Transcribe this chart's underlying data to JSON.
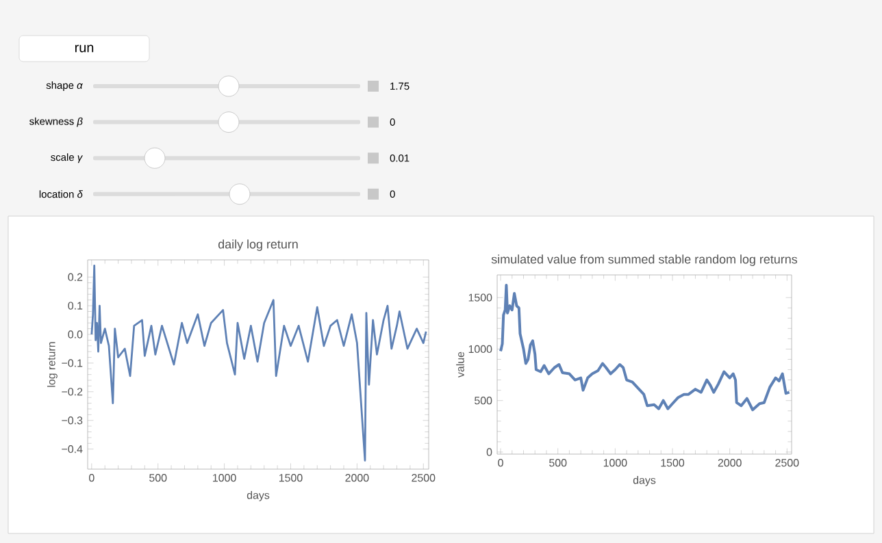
{
  "chart_data": [
    {
      "type": "other",
      "annotations": [
        "run",
        "shape *α*",
        "1.75",
        "skewness *β*",
        "0",
        "scale *γ*",
        "0.01",
        "location *δ*",
        "0"
      ]
    },
    {
      "type": "line",
      "title": "daily log return",
      "xlabel": "days",
      "ylabel": "log return",
      "xlim": [
        -30,
        2540
      ],
      "ylim": [
        -0.47,
        0.26
      ],
      "xticks": [
        0,
        500,
        1000,
        1500,
        2000,
        2500
      ],
      "yticks": [
        {
          "value": -0.4,
          "label": "−0.4"
        },
        {
          "value": -0.3,
          "label": "−0.3"
        },
        {
          "value": -0.2,
          "label": "−0.2"
        },
        {
          "value": -0.1,
          "label": "−0.1"
        },
        {
          "value": 0,
          "label": "0.0"
        },
        0.1,
        0.2
      ],
      "series": [
        {
          "color": "#5e81b5",
          "x": [
            0,
            10,
            20,
            30,
            40,
            50,
            60,
            70,
            100,
            130,
            160,
            175,
            200,
            250,
            290,
            320,
            380,
            400,
            450,
            480,
            530,
            620,
            680,
            720,
            800,
            850,
            900,
            990,
            1020,
            1080,
            1100,
            1150,
            1200,
            1250,
            1300,
            1370,
            1390,
            1450,
            1500,
            1560,
            1630,
            1700,
            1750,
            1800,
            1850,
            1900,
            1960,
            2000,
            2060,
            2070,
            2080,
            2090,
            2120,
            2150,
            2200,
            2230,
            2260,
            2300,
            2320,
            2380,
            2450,
            2500,
            2520
          ],
          "values": [
            0.0,
            0.07,
            0.24,
            -0.02,
            0.04,
            -0.06,
            0.1,
            -0.03,
            0.02,
            -0.04,
            -0.24,
            0.02,
            -0.08,
            -0.05,
            -0.145,
            0.03,
            0.05,
            -0.075,
            0.03,
            -0.07,
            0.03,
            -0.105,
            0.04,
            -0.03,
            0.07,
            -0.04,
            0.04,
            0.085,
            -0.03,
            -0.14,
            0.04,
            -0.085,
            0.03,
            -0.095,
            0.04,
            0.12,
            -0.145,
            0.03,
            -0.04,
            0.03,
            -0.095,
            0.095,
            -0.04,
            0.03,
            0.05,
            -0.04,
            0.07,
            -0.03,
            -0.44,
            0.075,
            -0.06,
            -0.175,
            0.05,
            -0.07,
            0.05,
            0.1,
            -0.05,
            0.03,
            0.08,
            -0.05,
            0.02,
            -0.03,
            0.01
          ]
        }
      ]
    },
    {
      "type": "line",
      "title": "simulated value from summed stable random log returns",
      "xlabel": "days",
      "ylabel": "value",
      "xlim": [
        -30,
        2540
      ],
      "ylim": [
        -20,
        1720
      ],
      "xticks": [
        0,
        500,
        1000,
        1500,
        2000,
        2500
      ],
      "yticks": [
        0,
        500,
        1000,
        1500
      ],
      "series": [
        {
          "color": "#5e81b5",
          "x": [
            0,
            15,
            25,
            40,
            50,
            60,
            80,
            100,
            120,
            140,
            160,
            170,
            200,
            220,
            240,
            260,
            280,
            300,
            310,
            350,
            380,
            420,
            470,
            510,
            540,
            600,
            650,
            700,
            720,
            760,
            800,
            850,
            890,
            920,
            960,
            1000,
            1040,
            1070,
            1100,
            1150,
            1200,
            1250,
            1280,
            1340,
            1380,
            1420,
            1460,
            1500,
            1550,
            1600,
            1640,
            1700,
            1750,
            1800,
            1830,
            1860,
            1900,
            1950,
            2000,
            2030,
            2050,
            2060,
            2100,
            2150,
            2200,
            2260,
            2300,
            2350,
            2400,
            2430,
            2460,
            2490,
            2520
          ],
          "values": [
            980,
            1050,
            1330,
            1380,
            1620,
            1350,
            1420,
            1380,
            1540,
            1420,
            1400,
            1150,
            1000,
            860,
            900,
            1040,
            1080,
            950,
            800,
            780,
            840,
            760,
            820,
            850,
            770,
            760,
            700,
            720,
            600,
            720,
            760,
            790,
            860,
            820,
            760,
            800,
            850,
            820,
            700,
            680,
            620,
            560,
            450,
            460,
            420,
            500,
            420,
            470,
            530,
            560,
            560,
            610,
            580,
            700,
            650,
            580,
            660,
            780,
            720,
            760,
            700,
            480,
            450,
            520,
            410,
            470,
            480,
            630,
            720,
            690,
            760,
            570,
            580
          ]
        }
      ]
    }
  ]
}
